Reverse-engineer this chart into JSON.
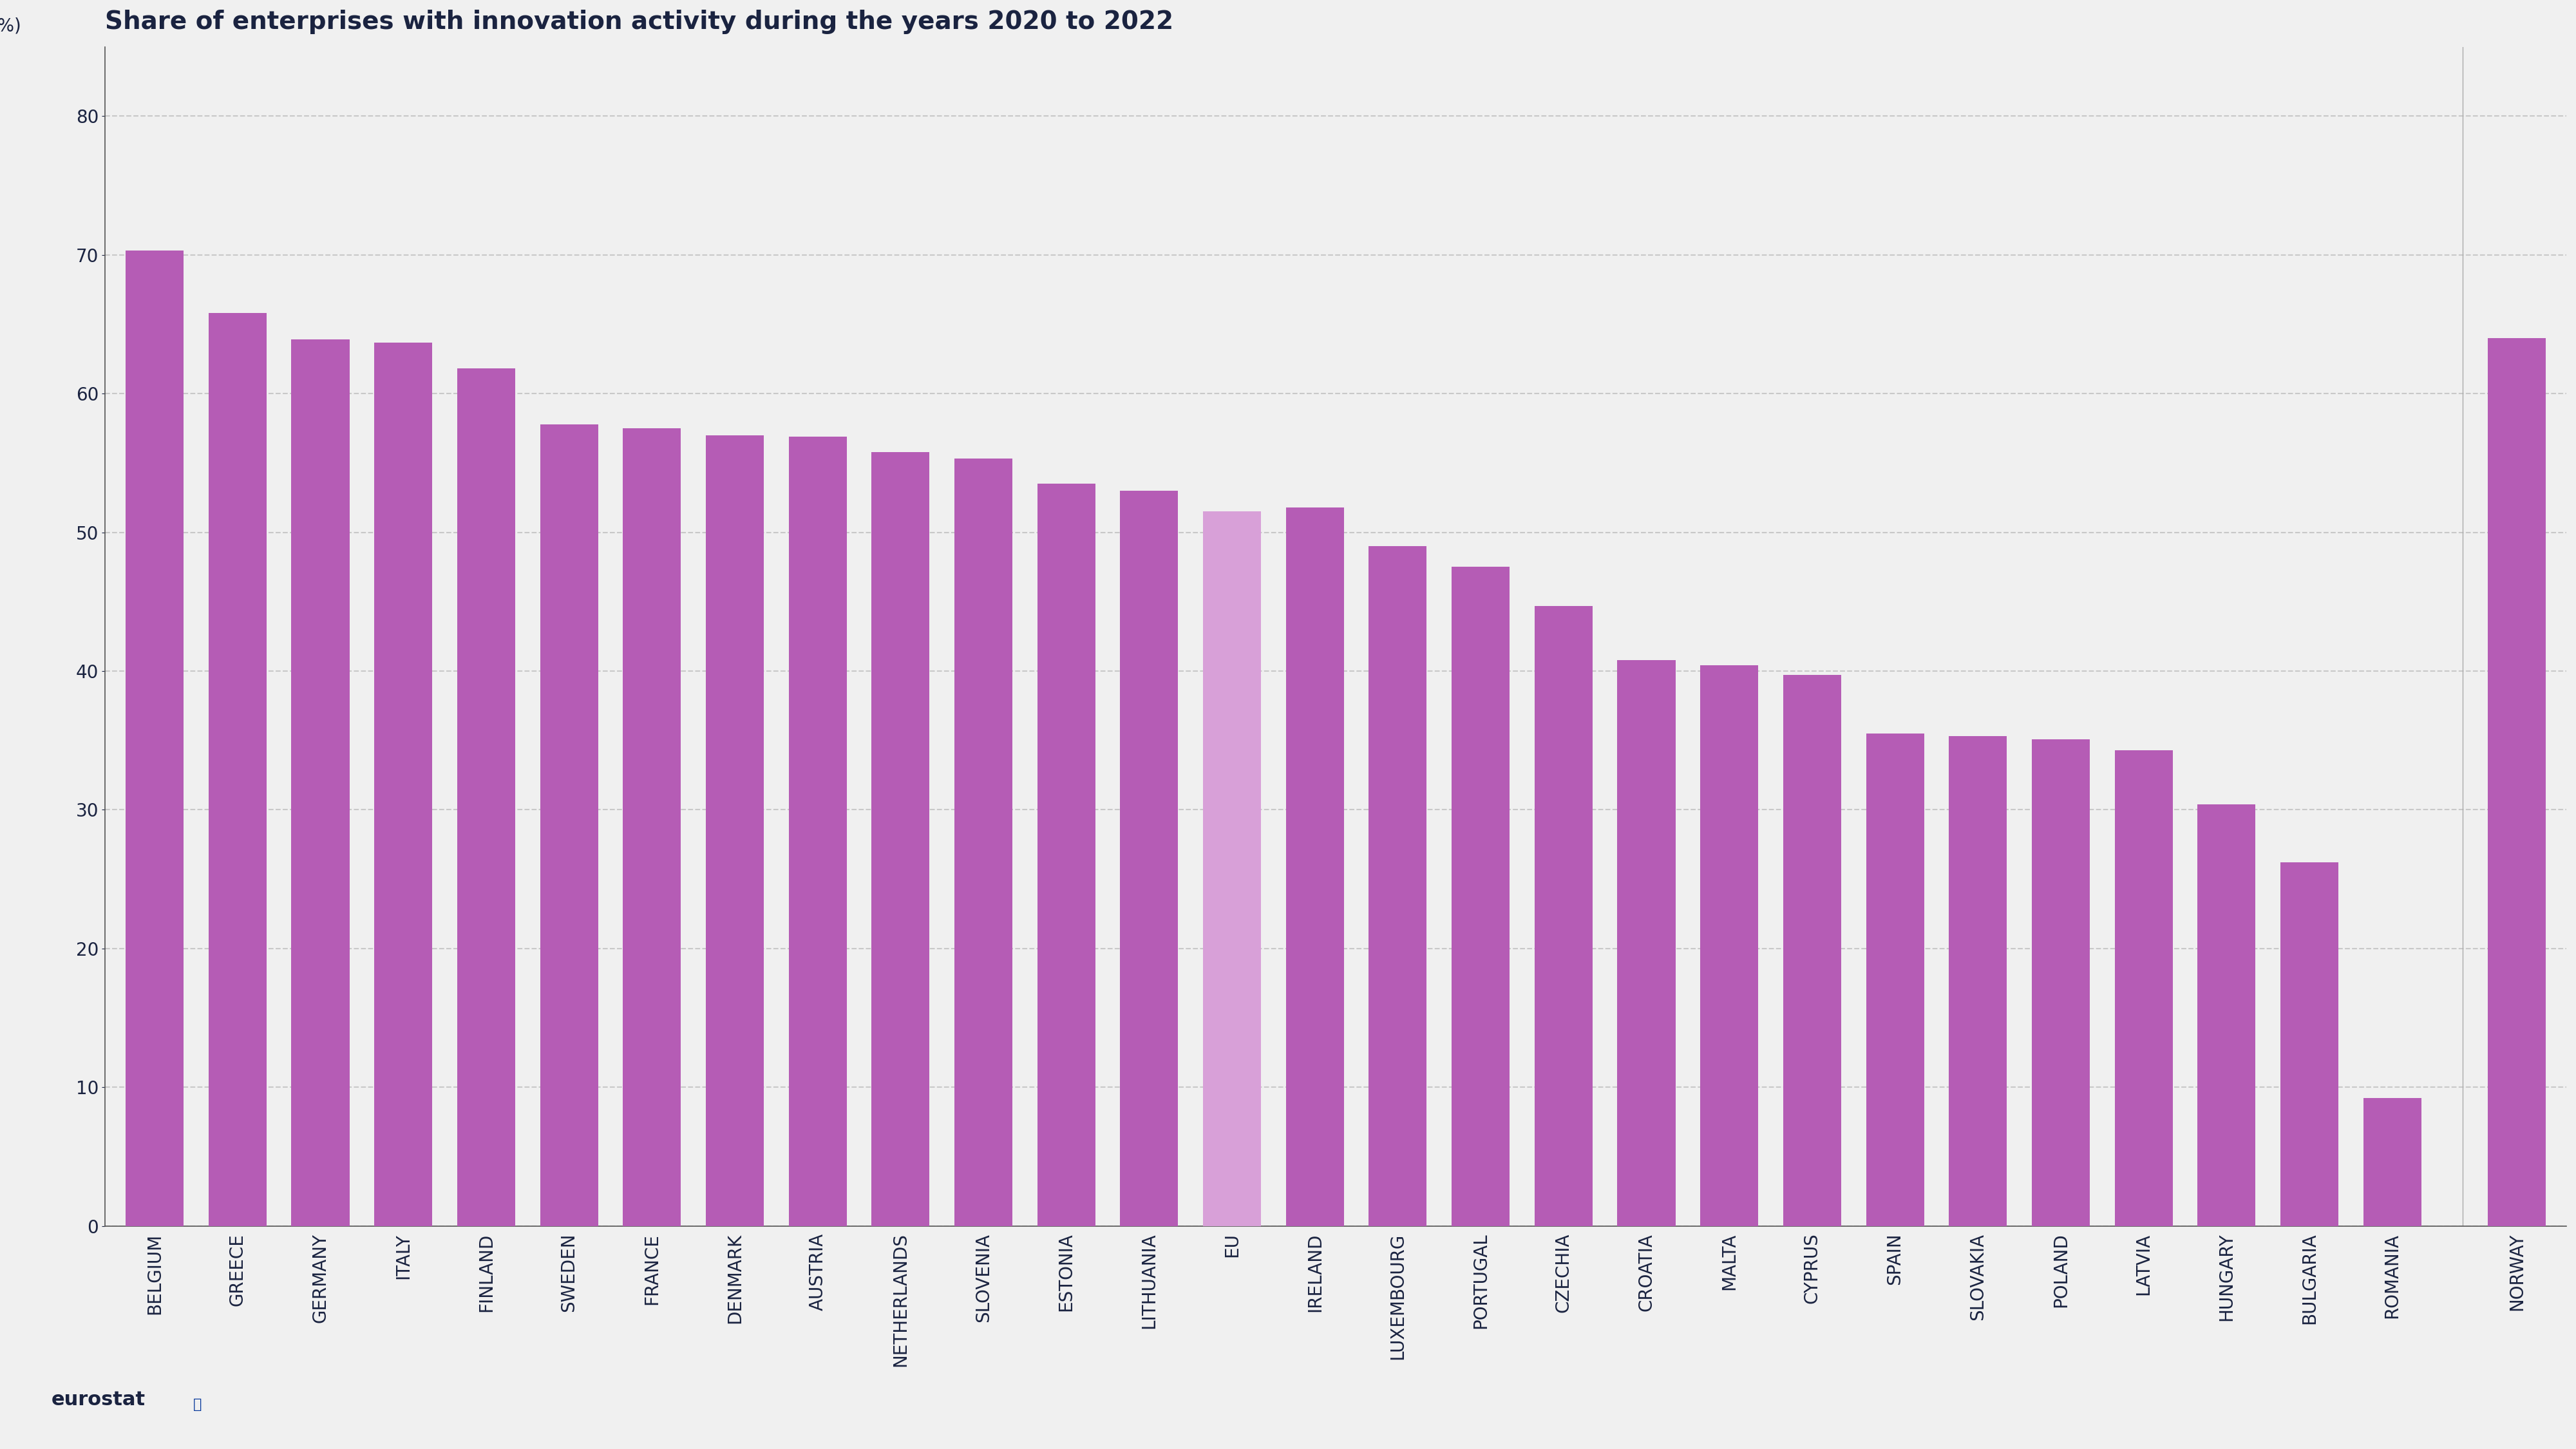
{
  "title": "Share of enterprises with innovation activity during the years 2020 to 2022",
  "ylabel": "(%)",
  "background_color": "#f0f0f0",
  "bar_color_main": "#b55cb5",
  "bar_color_eu": "#d8a0d8",
  "bar_color_norway": "#b55cb5",
  "categories": [
    "BELGIUM",
    "GREECE",
    "GERMANY",
    "ITALY",
    "FINLAND",
    "SWEDEN",
    "FRANCE",
    "DENMARK",
    "AUSTRIA",
    "NETHERLANDS",
    "SLOVENIA",
    "ESTONIA",
    "LITHUANIA",
    "EU",
    "IRELAND",
    "LUXEMBOURG",
    "PORTUGAL",
    "CZECHIA",
    "CROATIA",
    "MALTA",
    "CYPRUS",
    "SPAIN",
    "SLOVAKIA",
    "POLAND",
    "LATVIA",
    "HUNGARY",
    "BULGARIA",
    "ROMANIA",
    "NORWAY"
  ],
  "values": [
    70.3,
    65.8,
    63.9,
    63.7,
    61.8,
    57.8,
    57.5,
    57.0,
    56.9,
    55.8,
    55.3,
    53.5,
    53.0,
    51.5,
    51.8,
    49.0,
    47.5,
    44.7,
    40.8,
    40.4,
    39.7,
    35.5,
    35.3,
    35.1,
    34.3,
    30.4,
    26.2,
    9.2,
    64.0
  ],
  "ylim": [
    0,
    85
  ],
  "yticks": [
    0,
    10,
    20,
    30,
    40,
    50,
    60,
    70,
    80
  ],
  "title_color": "#1a2340",
  "title_fontsize": 28,
  "tick_label_fontsize": 20,
  "ylabel_fontsize": 20,
  "grid_color": "#c8c8c8",
  "axis_color": "#555555"
}
